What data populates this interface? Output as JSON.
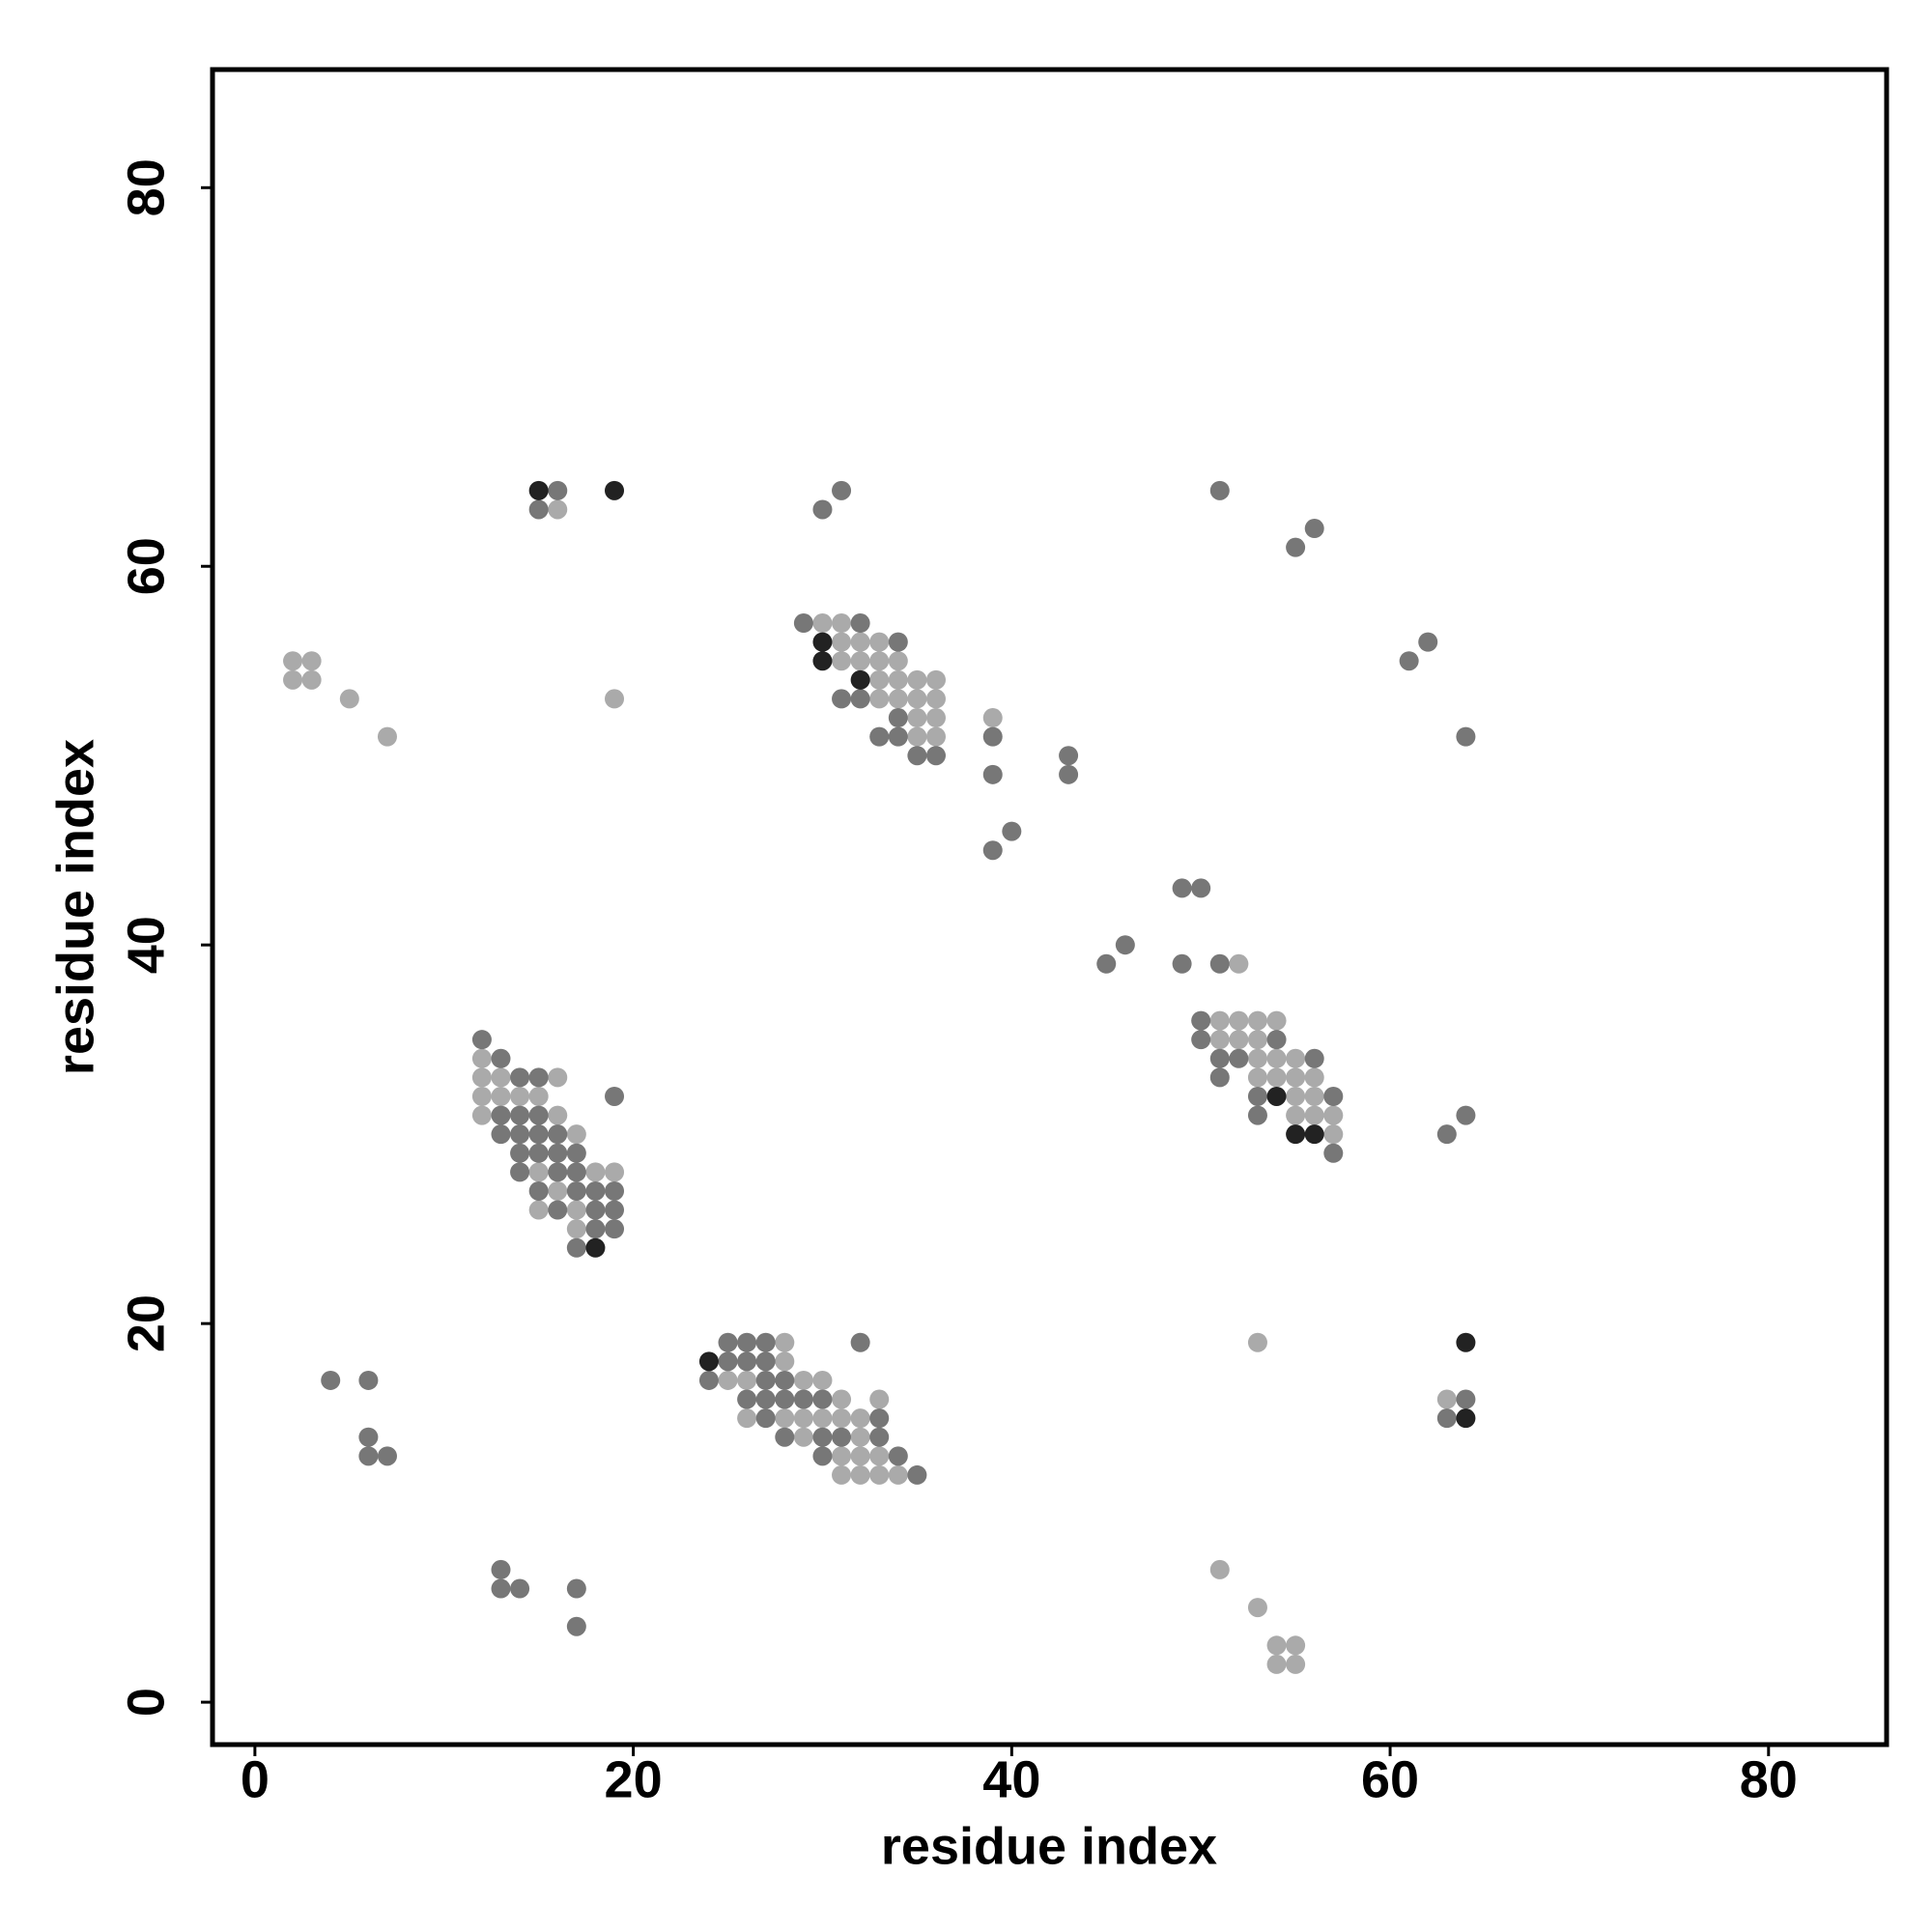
{
  "chart_data": {
    "type": "scatter",
    "xlabel": "residue index",
    "ylabel": "residue index",
    "xlim": [
      -2.24,
      86.24
    ],
    "ylim": [
      -2.24,
      86.24
    ],
    "xticks": [
      0,
      20,
      40,
      60,
      80
    ],
    "yticks": [
      0,
      20,
      40,
      60,
      80
    ],
    "series": [
      {
        "color": "#aaaaaa",
        "x": [
          16,
          2,
          3,
          2,
          3,
          5,
          7,
          19,
          30,
          31,
          31,
          32,
          33,
          31,
          32,
          33,
          34,
          33,
          34,
          35,
          36,
          33,
          34,
          35,
          36,
          35,
          36,
          39,
          35,
          36,
          52,
          51,
          52,
          53,
          54,
          51,
          52,
          53,
          53,
          54,
          55,
          53,
          54,
          55,
          56,
          55,
          56,
          55,
          56,
          57,
          57,
          12,
          12,
          13,
          16,
          12,
          13,
          14,
          15,
          12,
          16,
          17,
          15,
          18,
          19,
          16,
          15,
          17,
          17,
          28,
          53,
          28,
          25,
          26,
          29,
          30,
          31,
          33,
          63,
          26,
          28,
          29,
          30,
          31,
          32,
          29,
          32,
          31,
          32,
          33,
          31,
          32,
          33,
          34,
          51,
          53,
          54,
          55,
          54,
          55
        ],
        "values": [
          63,
          55,
          55,
          54,
          54,
          53,
          51,
          53,
          57,
          57,
          56,
          56,
          56,
          55,
          55,
          55,
          55,
          54,
          54,
          54,
          54,
          53,
          53,
          53,
          53,
          52,
          52,
          52,
          51,
          51,
          39,
          36,
          36,
          36,
          36,
          35,
          35,
          35,
          34,
          34,
          34,
          33,
          33,
          33,
          33,
          32,
          32,
          31,
          31,
          31,
          30,
          34,
          33,
          33,
          33,
          32,
          32,
          32,
          32,
          31,
          31,
          30,
          28,
          28,
          28,
          27,
          26,
          26,
          25,
          19,
          19,
          18,
          17,
          17,
          17,
          17,
          16,
          16,
          16,
          15,
          15,
          15,
          15,
          15,
          15,
          14,
          14,
          13,
          13,
          13,
          12,
          12,
          12,
          12,
          7,
          5,
          3,
          3,
          2,
          2
        ]
      },
      {
        "color": "#777777",
        "x": [
          16,
          15,
          30,
          31,
          51,
          55,
          56,
          29,
          32,
          34,
          31,
          32,
          34,
          33,
          34,
          39,
          35,
          36,
          43,
          39,
          43,
          40,
          39,
          61,
          62,
          64,
          49,
          50,
          46,
          45,
          49,
          51,
          50,
          50,
          54,
          51,
          52,
          56,
          51,
          53,
          57,
          53,
          64,
          63,
          57,
          12,
          13,
          14,
          15,
          19,
          13,
          14,
          15,
          13,
          14,
          15,
          16,
          14,
          15,
          16,
          17,
          14,
          16,
          17,
          15,
          17,
          18,
          19,
          16,
          18,
          19,
          18,
          19,
          17,
          25,
          26,
          27,
          32,
          25,
          26,
          27,
          24,
          27,
          28,
          4,
          6,
          26,
          27,
          28,
          29,
          30,
          64,
          27,
          33,
          63,
          28,
          30,
          31,
          33,
          6,
          30,
          34,
          6,
          7,
          35,
          13,
          13,
          14,
          17,
          17
        ],
        "values": [
          64,
          63,
          63,
          64,
          64,
          61,
          62,
          57,
          57,
          56,
          53,
          53,
          52,
          51,
          51,
          51,
          50,
          50,
          50,
          49,
          49,
          46,
          45,
          55,
          56,
          51,
          43,
          43,
          40,
          39,
          39,
          39,
          36,
          35,
          35,
          34,
          34,
          34,
          33,
          32,
          32,
          31,
          31,
          30,
          29,
          35,
          34,
          33,
          33,
          32,
          31,
          31,
          31,
          30,
          30,
          30,
          30,
          29,
          29,
          29,
          29,
          28,
          28,
          28,
          27,
          27,
          27,
          27,
          26,
          26,
          26,
          25,
          25,
          24,
          19,
          19,
          19,
          19,
          18,
          18,
          18,
          17,
          17,
          17,
          17,
          17,
          16,
          16,
          16,
          16,
          16,
          16,
          15,
          15,
          15,
          14,
          14,
          14,
          14,
          14,
          13,
          13,
          13,
          13,
          12,
          7,
          6,
          6,
          6,
          4
        ]
      },
      {
        "color": "#222222",
        "x": [
          15,
          19,
          30,
          30,
          32,
          54,
          55,
          56,
          18,
          64,
          24,
          64
        ],
        "values": [
          64,
          64,
          56,
          55,
          54,
          32,
          30,
          30,
          24,
          19,
          18,
          15
        ]
      }
    ]
  }
}
